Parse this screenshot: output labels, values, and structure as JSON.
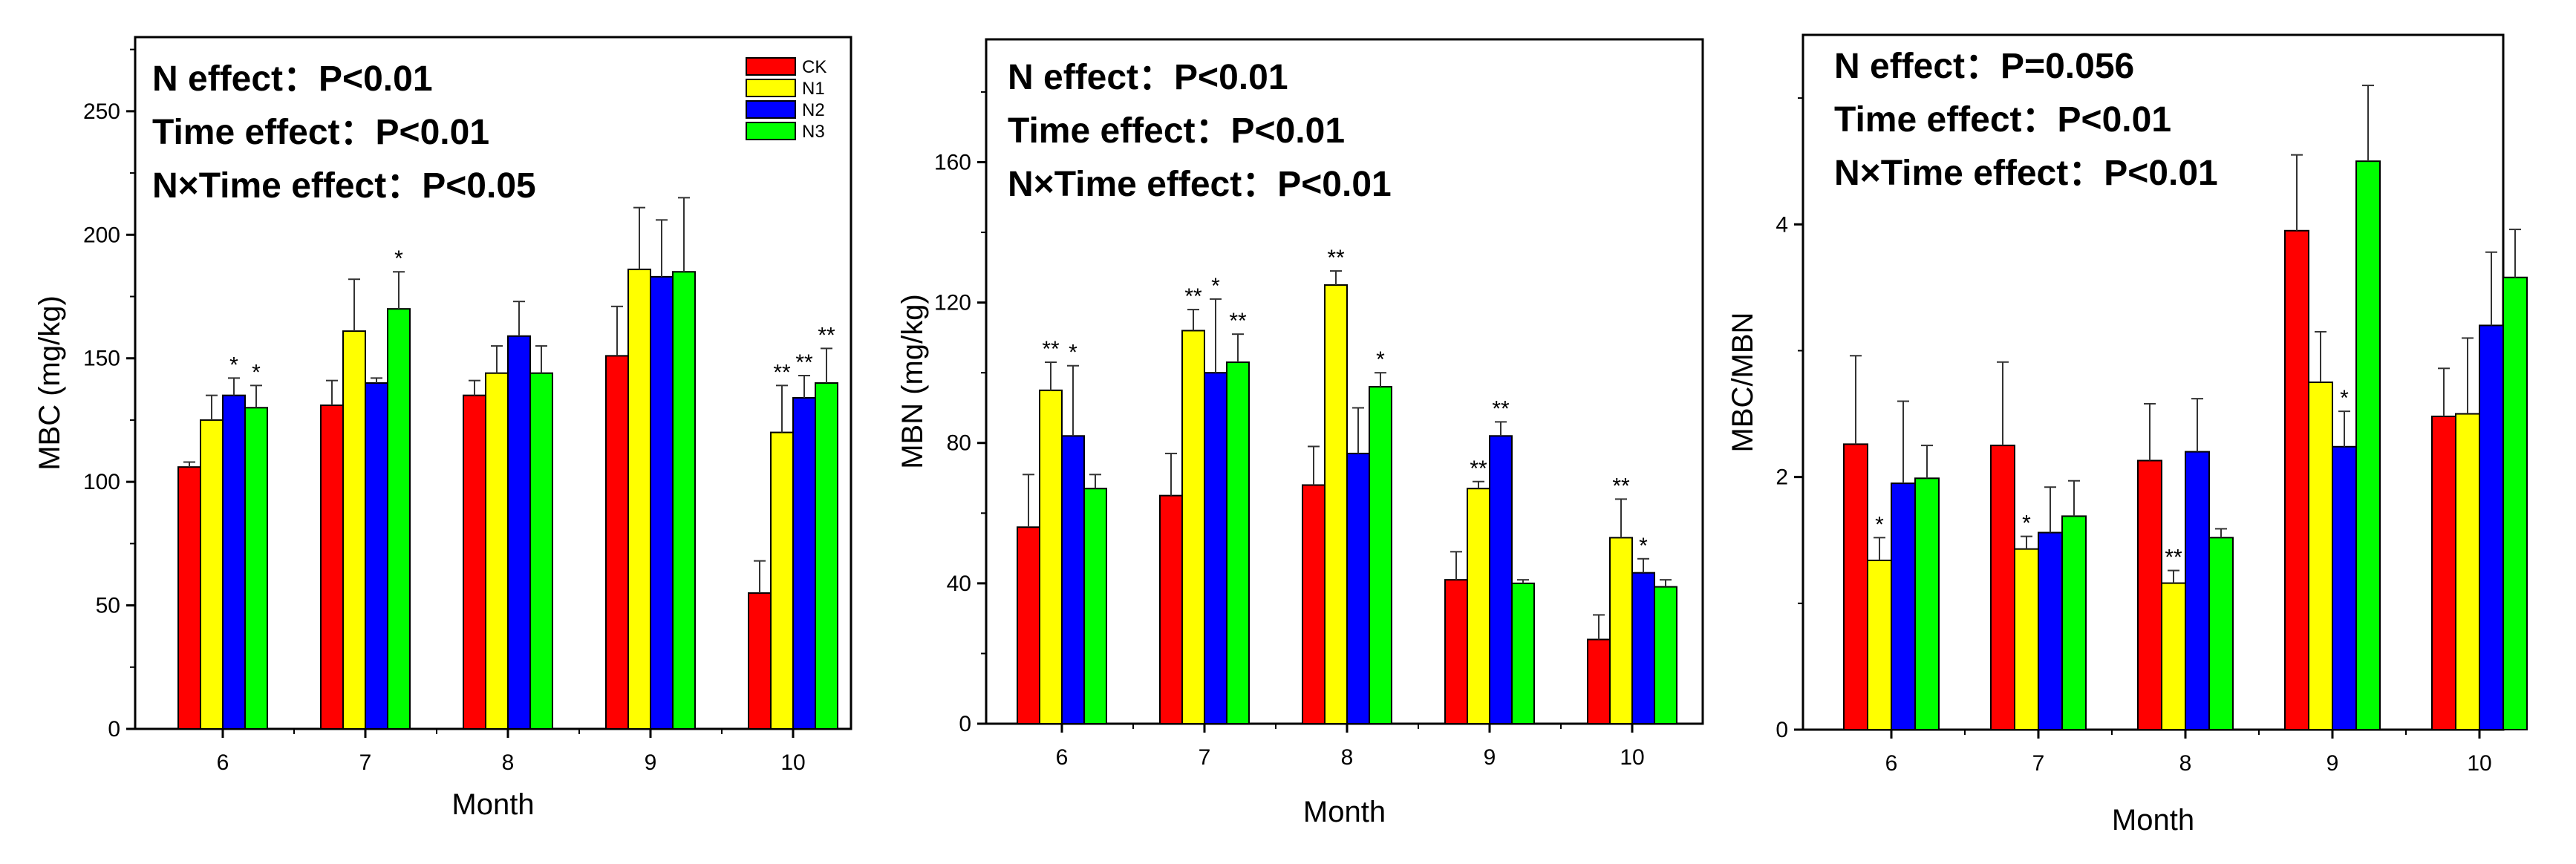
{
  "colors": {
    "CK": "#ff0000",
    "N1": "#ffff00",
    "N2": "#0000ff",
    "N3": "#00ff00"
  },
  "chart_data": [
    {
      "type": "bar",
      "title": "",
      "categories": [
        "6",
        "7",
        "8",
        "9",
        "10"
      ],
      "xlabel": "Month",
      "ylabel": "MBC (mg/kg)",
      "ylim": [
        0,
        280
      ],
      "yticks": [
        "0",
        "50",
        "100",
        "150",
        "200",
        "250"
      ],
      "grid": false,
      "stats": [
        "N effect：P<0.01",
        "Time effect：P<0.01",
        "N×Time effect：P<0.05"
      ],
      "legend": {
        "position": "top-right",
        "entries": [
          "CK",
          "N1",
          "N2",
          "N3"
        ]
      },
      "series": [
        {
          "name": "CK",
          "values": [
            106,
            131,
            135,
            151,
            55
          ],
          "errors": [
            2,
            10,
            6,
            20,
            13
          ],
          "labels": [
            "",
            "",
            "",
            "",
            ""
          ]
        },
        {
          "name": "N1",
          "values": [
            125,
            161,
            144,
            186,
            120
          ],
          "errors": [
            10,
            21,
            11,
            25,
            19
          ],
          "labels": [
            "",
            "",
            "",
            "",
            "**"
          ]
        },
        {
          "name": "N2",
          "values": [
            135,
            140,
            159,
            183,
            134
          ],
          "errors": [
            7,
            2,
            14,
            23,
            9
          ],
          "labels": [
            "*",
            "",
            "",
            "",
            "**"
          ]
        },
        {
          "name": "N3",
          "values": [
            130,
            170,
            144,
            185,
            140
          ],
          "errors": [
            9,
            15,
            11,
            30,
            14
          ],
          "labels": [
            "*",
            "*",
            "",
            "",
            "**"
          ]
        }
      ]
    },
    {
      "type": "bar",
      "title": "",
      "categories": [
        "6",
        "7",
        "8",
        "9",
        "10"
      ],
      "xlabel": "Month",
      "ylabel": "MBN (mg/kg)",
      "ylim": [
        0,
        195
      ],
      "yticks": [
        "0",
        "40",
        "80",
        "120",
        "160"
      ],
      "grid": false,
      "stats": [
        "N effect：P<0.01",
        "Time effect：P<0.01",
        "N×Time effect：P<0.01"
      ],
      "series": [
        {
          "name": "CK",
          "values": [
            56,
            65,
            68,
            41,
            24
          ],
          "errors": [
            15,
            12,
            11,
            8,
            7
          ],
          "labels": [
            "",
            "",
            "",
            "",
            ""
          ]
        },
        {
          "name": "N1",
          "values": [
            95,
            112,
            125,
            67,
            53
          ],
          "errors": [
            8,
            6,
            4,
            2,
            11
          ],
          "labels": [
            "**",
            "**",
            "**",
            "**",
            "**"
          ]
        },
        {
          "name": "N2",
          "values": [
            82,
            100,
            77,
            82,
            43
          ],
          "errors": [
            20,
            21,
            13,
            4,
            4
          ],
          "labels": [
            "*",
            "*",
            "",
            "**",
            "*"
          ]
        },
        {
          "name": "N3",
          "values": [
            67,
            103,
            96,
            40,
            39
          ],
          "errors": [
            4,
            8,
            4,
            1,
            2
          ],
          "labels": [
            "",
            "**",
            "*",
            "",
            ""
          ]
        }
      ]
    },
    {
      "type": "bar",
      "title": "",
      "categories": [
        "6",
        "7",
        "8",
        "9",
        "10"
      ],
      "xlabel": "Month",
      "ylabel": "MBC/MBN",
      "ylim": [
        0,
        5.5
      ],
      "yticks": [
        "0",
        "2",
        "4"
      ],
      "grid": false,
      "stats": [
        "N effect：P=0.056",
        "Time effect：P<0.01",
        "N×Time effect：P<0.01"
      ],
      "series": [
        {
          "name": "CK",
          "values": [
            2.26,
            2.25,
            2.13,
            3.95,
            2.48
          ],
          "errors": [
            0.7,
            0.66,
            0.45,
            0.6,
            0.38
          ],
          "labels": [
            "",
            "",
            "",
            "",
            ""
          ]
        },
        {
          "name": "N1",
          "values": [
            1.34,
            1.43,
            1.16,
            2.75,
            2.5
          ],
          "errors": [
            0.18,
            0.1,
            0.1,
            0.4,
            0.6
          ],
          "labels": [
            "*",
            "*",
            "**",
            "",
            ""
          ]
        },
        {
          "name": "N2",
          "values": [
            1.95,
            1.56,
            2.2,
            2.24,
            3.2
          ],
          "errors": [
            0.65,
            0.36,
            0.42,
            0.28,
            0.58
          ],
          "labels": [
            "",
            "",
            "",
            "*",
            ""
          ]
        },
        {
          "name": "N3",
          "values": [
            1.99,
            1.69,
            1.52,
            4.5,
            3.58
          ],
          "errors": [
            0.26,
            0.28,
            0.07,
            0.6,
            0.38
          ],
          "labels": [
            "",
            "",
            "",
            "",
            ""
          ]
        }
      ]
    }
  ]
}
